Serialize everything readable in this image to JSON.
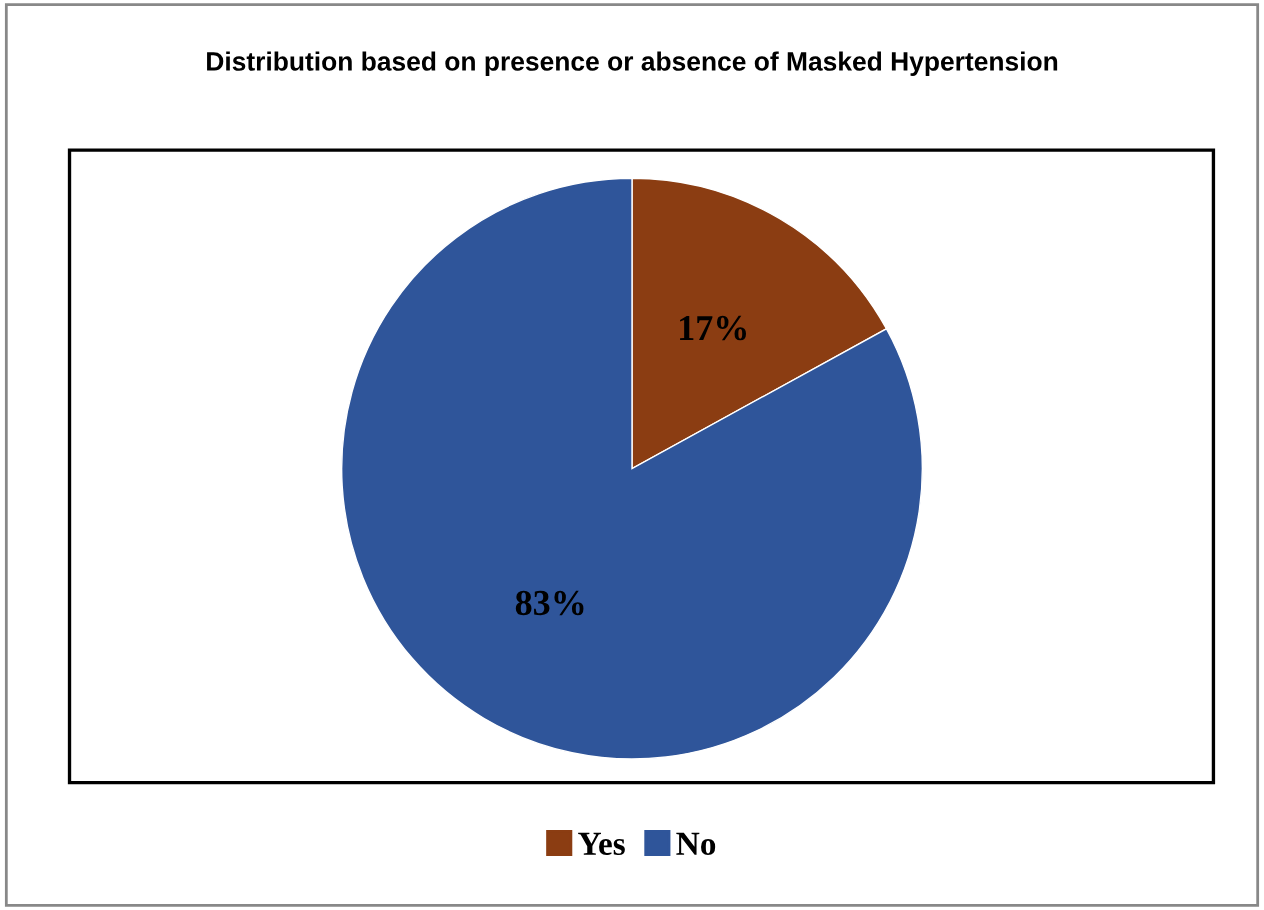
{
  "chart_data": {
    "type": "pie",
    "title": "Distribution based on presence or absence of Masked Hypertension",
    "categories": [
      "Yes",
      "No"
    ],
    "values": [
      17,
      83
    ],
    "colors": [
      "#8b3d12",
      "#2f559a"
    ],
    "value_labels": [
      "17%",
      "83%"
    ],
    "legend": "bottom"
  }
}
